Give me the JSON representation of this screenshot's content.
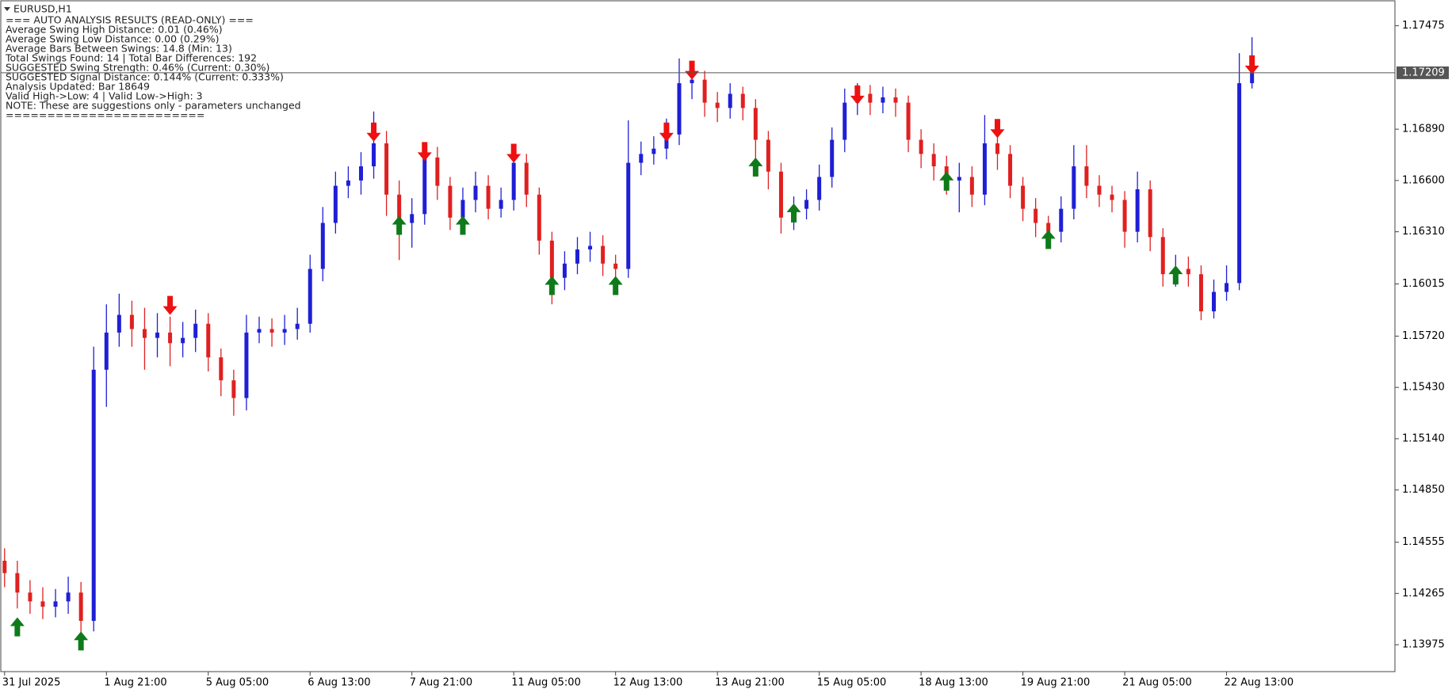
{
  "chart_data": {
    "type": "candlestick",
    "symbol": "EURUSD,H1",
    "info_lines": [
      "=== AUTO ANALYSIS RESULTS (READ-ONLY) ===",
      "Average Swing High Distance: 0.01 (0.46%)",
      "Average Swing Low Distance: 0.00 (0.29%)",
      "Average Bars Between Swings: 14.8 (Min: 13)",
      "Total Swings Found: 14 | Total Bar Differences: 192",
      "SUGGESTED Swing Strength: 0.46% (Current: 0.30%)",
      "SUGGESTED Signal Distance: 0.144% (Current: 0.333%)",
      "Analysis Updated: Bar 18649",
      "Valid High->Low: 4 | Valid Low->High: 3",
      "NOTE: These are suggestions only - parameters unchanged",
      "========================"
    ],
    "categories": [
      "31 Jul 2025",
      null,
      null,
      null,
      null,
      null,
      null,
      null,
      "1 Aug 21:00",
      null,
      null,
      null,
      null,
      null,
      null,
      null,
      "5 Aug 05:00",
      null,
      null,
      null,
      null,
      null,
      null,
      null,
      "6 Aug 13:00",
      null,
      null,
      null,
      null,
      null,
      null,
      null,
      "7 Aug 21:00",
      null,
      null,
      null,
      null,
      null,
      null,
      null,
      "11 Aug 05:00",
      null,
      null,
      null,
      null,
      null,
      null,
      null,
      "12 Aug 13:00",
      null,
      null,
      null,
      null,
      null,
      null,
      null,
      "13 Aug 21:00",
      null,
      null,
      null,
      null,
      null,
      null,
      null,
      "15 Aug 05:00",
      null,
      null,
      null,
      null,
      null,
      null,
      null,
      "18 Aug 13:00",
      null,
      null,
      null,
      null,
      null,
      null,
      null,
      "19 Aug 21:00",
      null,
      null,
      null,
      null,
      null,
      null,
      null,
      "21 Aug 05:00",
      null,
      null,
      null,
      null,
      null,
      null,
      null,
      "22 Aug 13:00",
      null,
      null
    ],
    "open": [
      1.1445,
      1.1438,
      1.1427,
      1.1422,
      1.1419,
      1.1422,
      1.1427,
      1.1411,
      1.1553,
      1.1574,
      1.1584,
      1.1576,
      1.1571,
      1.1574,
      1.1568,
      1.1571,
      1.1579,
      1.156,
      1.1547,
      1.1537,
      1.1574,
      1.1576,
      1.1574,
      1.1576,
      1.1579,
      1.161,
      1.1636,
      1.1657,
      1.166,
      1.1668,
      1.1681,
      1.1652,
      1.1636,
      1.1641,
      1.1673,
      1.1657,
      1.1639,
      1.1649,
      1.1657,
      1.1644,
      1.1649,
      1.167,
      1.1652,
      1.1626,
      1.1605,
      1.1613,
      1.1621,
      1.1623,
      1.1613,
      1.161,
      1.167,
      1.1675,
      1.1678,
      1.1686,
      1.1715,
      1.1717,
      1.1704,
      1.1701,
      1.1709,
      1.1701,
      1.1683,
      1.1665,
      1.1639,
      1.1644,
      1.1649,
      1.1662,
      1.1683,
      1.1704,
      1.1709,
      1.1704,
      1.1707,
      1.1704,
      1.1683,
      1.1675,
      1.1668,
      1.166,
      1.1662,
      1.1652,
      1.1681,
      1.1675,
      1.1657,
      1.1644,
      1.1636,
      1.1631,
      1.1644,
      1.1668,
      1.1657,
      1.1652,
      1.1649,
      1.1631,
      1.1655,
      1.1628,
      1.1607,
      1.161,
      1.1607,
      1.1586,
      1.1597,
      1.1602,
      1.1715
    ],
    "high": [
      1.1452,
      1.1445,
      1.1434,
      1.143,
      1.1429,
      1.1436,
      1.1433,
      1.1566,
      1.159,
      1.1596,
      1.1592,
      1.1588,
      1.1585,
      1.1583,
      1.158,
      1.1587,
      1.1585,
      1.1565,
      1.1553,
      1.1584,
      1.1583,
      1.1582,
      1.1584,
      1.1588,
      1.1618,
      1.1645,
      1.1665,
      1.1668,
      1.1676,
      1.1699,
      1.1688,
      1.166,
      1.165,
      1.168,
      1.1679,
      1.1662,
      1.1656,
      1.1665,
      1.1663,
      1.1656,
      1.1678,
      1.1675,
      1.1656,
      1.1631,
      1.162,
      1.1628,
      1.1631,
      1.1629,
      1.1618,
      1.1694,
      1.1682,
      1.1685,
      1.1695,
      1.1729,
      1.1727,
      1.1722,
      1.171,
      1.1715,
      1.1713,
      1.1706,
      1.1688,
      1.167,
      1.1651,
      1.1655,
      1.1669,
      1.169,
      1.1712,
      1.1715,
      1.1714,
      1.1713,
      1.1712,
      1.1708,
      1.1689,
      1.1681,
      1.1674,
      1.167,
      1.1668,
      1.1697,
      1.1687,
      1.168,
      1.1662,
      1.165,
      1.164,
      1.1651,
      1.168,
      1.168,
      1.1663,
      1.1657,
      1.1654,
      1.1665,
      1.166,
      1.1633,
      1.1618,
      1.1617,
      1.1612,
      1.1604,
      1.1612,
      1.1732,
      1.1741
    ],
    "low": [
      1.143,
      1.1418,
      1.1415,
      1.1412,
      1.1413,
      1.1415,
      1.1397,
      1.1405,
      1.1532,
      1.1566,
      1.1566,
      1.1553,
      1.156,
      1.1555,
      1.156,
      1.1563,
      1.1552,
      1.1538,
      1.1527,
      1.153,
      1.1568,
      1.1566,
      1.1567,
      1.157,
      1.1574,
      1.1603,
      1.163,
      1.165,
      1.1652,
      1.1661,
      1.164,
      1.1615,
      1.1622,
      1.1635,
      1.1649,
      1.1632,
      1.1633,
      1.1642,
      1.1638,
      1.1639,
      1.1643,
      1.1645,
      1.1618,
      1.159,
      1.1598,
      1.1607,
      1.1614,
      1.1606,
      1.1601,
      1.1605,
      1.1663,
      1.1669,
      1.1672,
      1.168,
      1.1706,
      1.1696,
      1.1693,
      1.1695,
      1.1694,
      1.1672,
      1.1655,
      1.163,
      1.1632,
      1.1638,
      1.1643,
      1.1656,
      1.1676,
      1.1697,
      1.1697,
      1.1698,
      1.1696,
      1.1676,
      1.1667,
      1.166,
      1.1652,
      1.1642,
      1.1645,
      1.1646,
      1.1666,
      1.165,
      1.1637,
      1.1628,
      1.1623,
      1.1625,
      1.1638,
      1.165,
      1.1645,
      1.1642,
      1.1622,
      1.1625,
      1.162,
      1.16,
      1.16,
      1.16,
      1.1581,
      1.1582,
      1.1592,
      1.1598,
      1.1712
    ],
    "close": [
      1.1438,
      1.1427,
      1.1422,
      1.1419,
      1.1422,
      1.1427,
      1.1411,
      1.1553,
      1.1574,
      1.1584,
      1.1576,
      1.1571,
      1.1574,
      1.1568,
      1.1571,
      1.1579,
      1.156,
      1.1547,
      1.1537,
      1.1574,
      1.1576,
      1.1574,
      1.1576,
      1.1579,
      1.161,
      1.1636,
      1.1657,
      1.166,
      1.1668,
      1.1681,
      1.1652,
      1.1636,
      1.1641,
      1.1673,
      1.1657,
      1.1639,
      1.1649,
      1.1657,
      1.1644,
      1.1649,
      1.167,
      1.1652,
      1.1626,
      1.1605,
      1.1613,
      1.1621,
      1.1623,
      1.1613,
      1.161,
      1.167,
      1.1675,
      1.1678,
      1.1686,
      1.1715,
      1.1717,
      1.1704,
      1.1701,
      1.1709,
      1.1701,
      1.1683,
      1.1665,
      1.1639,
      1.1644,
      1.1649,
      1.1662,
      1.1683,
      1.1704,
      1.1709,
      1.1704,
      1.1707,
      1.1704,
      1.1683,
      1.1675,
      1.1668,
      1.166,
      1.1662,
      1.1652,
      1.1681,
      1.1675,
      1.1657,
      1.1644,
      1.1636,
      1.1631,
      1.1644,
      1.1668,
      1.1657,
      1.1652,
      1.1649,
      1.1631,
      1.1655,
      1.1628,
      1.1607,
      1.161,
      1.1607,
      1.1586,
      1.1597,
      1.1602,
      1.1715,
      1.1721
    ],
    "up_color": "#1f1fd6",
    "down_color": "#e02020",
    "signals": [
      {
        "name": "swing low",
        "direction": "up",
        "color": "#0f7a1a",
        "x": [
          1,
          6,
          31,
          36,
          43,
          48,
          59,
          62,
          74,
          82,
          92
        ],
        "y": [
          1.1413,
          1.1405,
          1.164,
          1.164,
          1.1606,
          1.1606,
          1.1673,
          1.1647,
          1.1665,
          1.1632,
          1.1612
        ]
      },
      {
        "name": "swing high",
        "direction": "down",
        "color": "#ee1111",
        "x": [
          13,
          29,
          33,
          40,
          52,
          54,
          67,
          78,
          98
        ],
        "y": [
          1.1584,
          1.1682,
          1.1671,
          1.167,
          1.1682,
          1.1717,
          1.1703,
          1.1684,
          1.172
        ]
      }
    ],
    "current_price": 1.17209,
    "ylim": [
      1.13823,
      1.17616
    ],
    "yticks": [
      1.17475,
      {
        "value": 1.1689,
        "label": "1.16890"
      },
      {
        "value": 1.166,
        "label": "1.16600"
      },
      {
        "value": 1.1631,
        "label": "1.16310"
      },
      1.16015,
      {
        "value": 1.1572,
        "label": "1.15720"
      },
      {
        "value": 1.1543,
        "label": "1.15430"
      },
      {
        "value": 1.1514,
        "label": "1.15140"
      },
      {
        "value": 1.1485,
        "label": "1.14850"
      },
      1.14555,
      1.14265,
      1.13975
    ]
  }
}
